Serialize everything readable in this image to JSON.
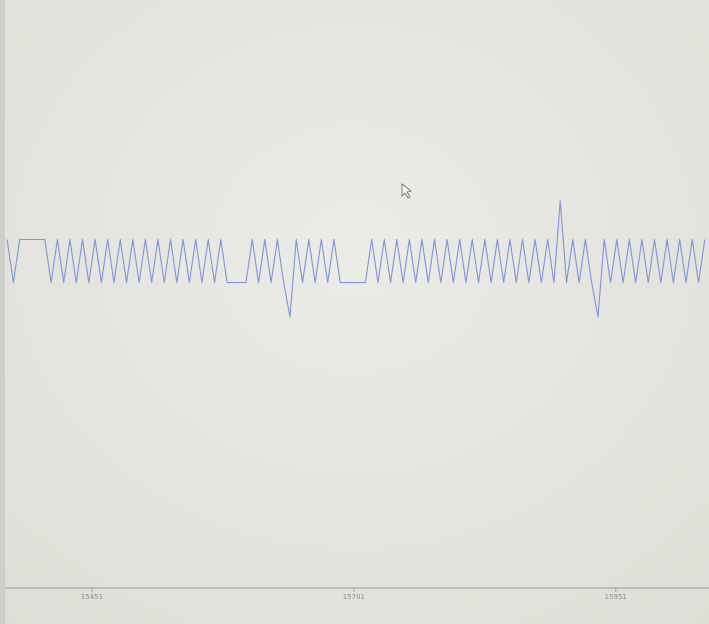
{
  "chart_data": {
    "type": "line",
    "x": [
      15370,
      15376,
      15382,
      15388,
      15394,
      15400,
      15406,
      15412,
      15418,
      15424,
      15430,
      15436,
      15442,
      15448,
      15454,
      15460,
      15466,
      15472,
      15478,
      15484,
      15490,
      15496,
      15502,
      15508,
      15514,
      15520,
      15526,
      15532,
      15538,
      15544,
      15550,
      15556,
      15562,
      15568,
      15574,
      15580,
      15586,
      15592,
      15598,
      15604,
      15610,
      15616,
      15622,
      15628,
      15634,
      15640,
      15646,
      15652,
      15658,
      15664,
      15670,
      15676,
      15682,
      15688,
      15694,
      15700,
      15706,
      15712,
      15718,
      15724,
      15730,
      15736,
      15742,
      15748,
      15754,
      15760,
      15766,
      15772,
      15778,
      15784,
      15790,
      15796,
      15802,
      15808,
      15814,
      15820,
      15826,
      15832,
      15838,
      15844,
      15850,
      15856,
      15862,
      15868,
      15874,
      15880,
      15886,
      15892,
      15898,
      15904,
      15910,
      15916,
      15922,
      15928,
      15934,
      15940,
      15946,
      15952,
      15958,
      15964,
      15970,
      15976,
      15982,
      15988,
      15994,
      16000,
      16006,
      16012,
      16018,
      16024,
      16030,
      16036
    ],
    "series": [
      {
        "color": "#7d95da",
        "values": [
          1,
          0,
          1,
          1,
          1,
          1,
          1,
          0,
          1,
          0,
          1,
          0,
          1,
          0,
          1,
          0,
          1,
          0,
          1,
          0,
          1,
          0,
          1,
          0,
          1,
          0,
          1,
          0,
          1,
          0,
          1,
          0,
          1,
          0,
          1,
          0,
          0,
          0,
          0,
          1,
          0,
          1,
          0,
          1,
          0,
          -0.8,
          1,
          0,
          1,
          0,
          1,
          0,
          1,
          0,
          0,
          0,
          0,
          0,
          1,
          0,
          1,
          0,
          1,
          0,
          1,
          0,
          1,
          0,
          1,
          0,
          1,
          0,
          1,
          0,
          1,
          0,
          1,
          0,
          1,
          0,
          1,
          0,
          1,
          0,
          1,
          0,
          1,
          0,
          1.9,
          0,
          1,
          0,
          1,
          0,
          -0.8,
          1,
          0,
          1,
          0,
          1,
          0,
          1,
          0,
          1,
          0,
          1,
          0,
          1,
          0,
          1,
          0,
          1
        ]
      }
    ],
    "xlim": [
      15368,
      16040
    ],
    "ylim": [
      -7.1,
      6.45
    ],
    "xticks": [
      15451,
      15701,
      15951
    ]
  }
}
